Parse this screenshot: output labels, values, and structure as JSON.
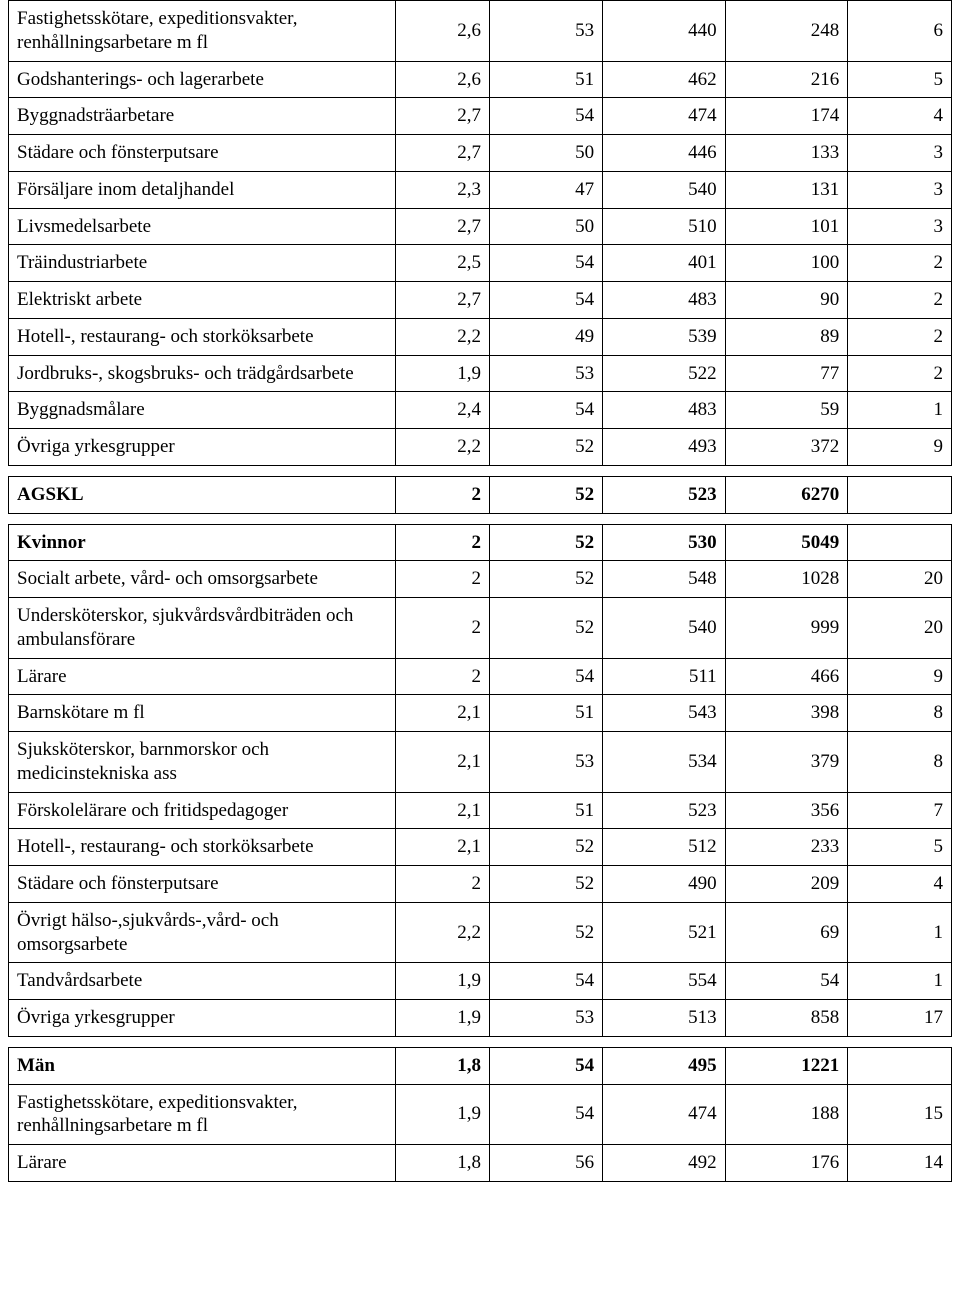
{
  "table": {
    "font_family": "Times New Roman",
    "font_size_pt": 14,
    "text_color": "#000000",
    "border_color": "#000000",
    "background_color": "#ffffff",
    "column_widths_pct": [
      41,
      10,
      12,
      13,
      13,
      11
    ],
    "columns_align": [
      "left",
      "right",
      "right",
      "right",
      "right",
      "right"
    ],
    "rows": [
      {
        "cells": [
          "Fastighetsskötare, expeditionsvakter, renhållningsarbetare m fl",
          "2,6",
          "53",
          "440",
          "248",
          "6"
        ]
      },
      {
        "cells": [
          "Godshanterings- och lagerarbete",
          "2,6",
          "51",
          "462",
          "216",
          "5"
        ]
      },
      {
        "cells": [
          "Byggnadsträarbetare",
          "2,7",
          "54",
          "474",
          "174",
          "4"
        ]
      },
      {
        "cells": [
          "Städare och fönsterputsare",
          "2,7",
          "50",
          "446",
          "133",
          "3"
        ]
      },
      {
        "cells": [
          "Försäljare inom detaljhandel",
          "2,3",
          "47",
          "540",
          "131",
          "3"
        ]
      },
      {
        "cells": [
          "Livsmedelsarbete",
          "2,7",
          "50",
          "510",
          "101",
          "3"
        ]
      },
      {
        "cells": [
          "Träindustriarbete",
          "2,5",
          "54",
          "401",
          "100",
          "2"
        ]
      },
      {
        "cells": [
          "Elektriskt arbete",
          "2,7",
          "54",
          "483",
          "90",
          "2"
        ]
      },
      {
        "cells": [
          "Hotell-, restaurang- och storköksarbete",
          "2,2",
          "49",
          "539",
          "89",
          "2"
        ]
      },
      {
        "cells": [
          "Jordbruks-, skogsbruks- och trädgårdsarbete",
          "1,9",
          "53",
          "522",
          "77",
          "2"
        ]
      },
      {
        "cells": [
          "Byggnadsmålare",
          "2,4",
          "54",
          "483",
          "59",
          "1"
        ]
      },
      {
        "cells": [
          "Övriga yrkesgrupper",
          "2,2",
          "52",
          "493",
          "372",
          "9"
        ]
      },
      {
        "spacer": true
      },
      {
        "cells": [
          "AGSKL",
          "2",
          "52",
          "523",
          "6270",
          ""
        ],
        "bold": true
      },
      {
        "spacer": true
      },
      {
        "cells": [
          "Kvinnor",
          "2",
          "52",
          "530",
          "5049",
          ""
        ],
        "bold": true
      },
      {
        "cells": [
          "Socialt arbete, vård- och omsorgsarbete",
          "2",
          "52",
          "548",
          "1028",
          "20"
        ]
      },
      {
        "cells": [
          "Undersköterskor, sjukvårdsvårdbiträden och ambulansförare",
          "2",
          "52",
          "540",
          "999",
          "20"
        ]
      },
      {
        "cells": [
          "Lärare",
          "2",
          "54",
          "511",
          "466",
          "9"
        ]
      },
      {
        "cells": [
          "Barnskötare m fl",
          "2,1",
          "51",
          "543",
          "398",
          "8"
        ]
      },
      {
        "cells": [
          "Sjuksköterskor, barnmorskor och medicinstekniska ass",
          "2,1",
          "53",
          "534",
          "379",
          "8"
        ]
      },
      {
        "cells": [
          "Förskolelärare och fritidspedagoger",
          "2,1",
          "51",
          "523",
          "356",
          "7"
        ]
      },
      {
        "cells": [
          "Hotell-, restaurang- och storköksarbete",
          "2,1",
          "52",
          "512",
          "233",
          "5"
        ]
      },
      {
        "cells": [
          "Städare och fönsterputsare",
          "2",
          "52",
          "490",
          "209",
          "4"
        ]
      },
      {
        "cells": [
          "Övrigt hälso-,sjukvårds-,vård- och omsorgsarbete",
          "2,2",
          "52",
          "521",
          "69",
          "1"
        ]
      },
      {
        "cells": [
          "Tandvårdsarbete",
          "1,9",
          "54",
          "554",
          "54",
          "1"
        ]
      },
      {
        "cells": [
          "Övriga yrkesgrupper",
          "1,9",
          "53",
          "513",
          "858",
          "17"
        ]
      },
      {
        "spacer": true
      },
      {
        "cells": [
          "Män",
          "1,8",
          "54",
          "495",
          "1221",
          ""
        ],
        "bold": true
      },
      {
        "cells": [
          "Fastighetsskötare, expeditionsvakter, renhållningsarbetare m fl",
          "1,9",
          "54",
          "474",
          "188",
          "15"
        ]
      },
      {
        "cells": [
          "Lärare",
          "1,8",
          "56",
          "492",
          "176",
          "14"
        ]
      }
    ]
  }
}
